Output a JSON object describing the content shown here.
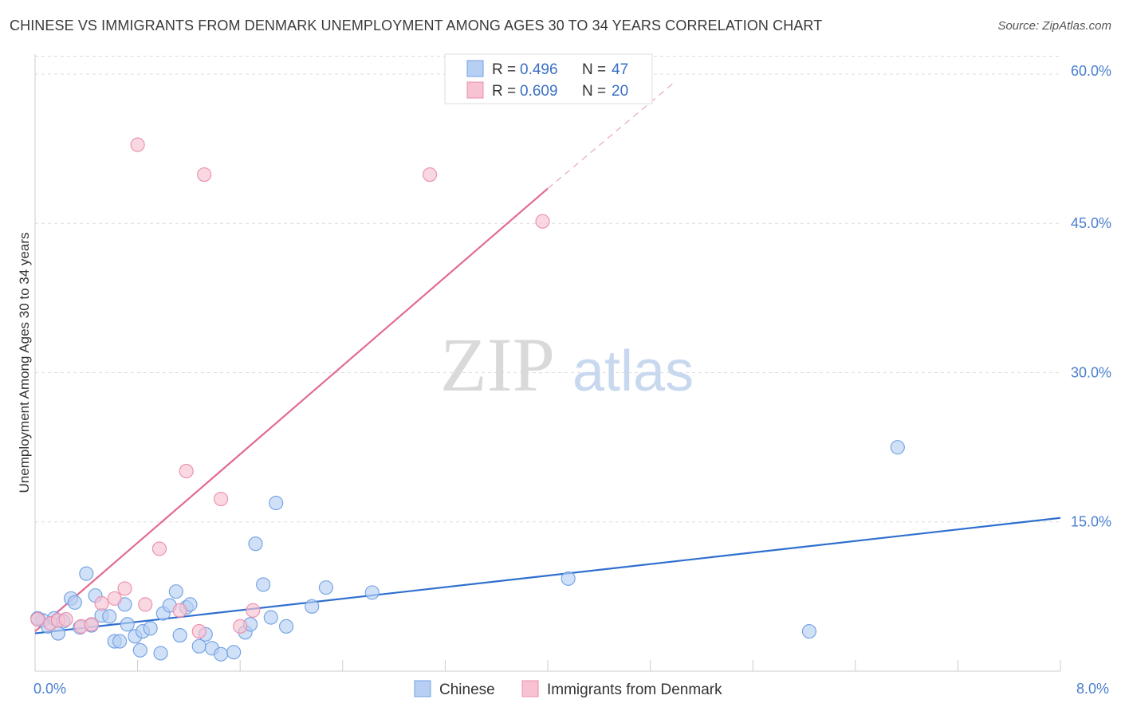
{
  "chart_data": {
    "type": "scatter",
    "title": "CHINESE VS IMMIGRANTS FROM DENMARK UNEMPLOYMENT AMONG AGES 30 TO 34 YEARS CORRELATION CHART",
    "source": "Source: ZipAtlas.com",
    "ylabel": "Unemployment Among Ages 30 to 34 years",
    "xlim": [
      0,
      8
    ],
    "ylim": [
      0,
      62
    ],
    "x_tick_labels": [
      "0.0%",
      "8.0%"
    ],
    "y_ticks": [
      15,
      30,
      45,
      60
    ],
    "y_tick_labels": [
      "15.0%",
      "30.0%",
      "45.0%",
      "60.0%"
    ],
    "watermark": {
      "zip": "ZIP",
      "atlas": "atlas"
    },
    "legend": {
      "r_label": "R =",
      "n_label": "N =",
      "entries": [
        {
          "name": "Chinese",
          "r": "0.496",
          "n": "47",
          "color": "#6fa0e4",
          "fill": "#b7cff2"
        },
        {
          "name": "Immigrants from Denmark",
          "r": "0.609",
          "n": "20",
          "color": "#ec8cab",
          "fill": "#f7c3d3"
        }
      ]
    },
    "series": [
      {
        "name": "Chinese",
        "color": "#6fa0e4",
        "fill": "#b7cff2",
        "trend": {
          "x0": 0.0,
          "y0": 3.8,
          "x1": 8.0,
          "y1": 15.4,
          "dashed_to": null,
          "line_color": "#2f6fcf"
        },
        "points": [
          [
            0.06,
            5.1
          ],
          [
            0.1,
            4.5
          ],
          [
            0.15,
            5.3
          ],
          [
            0.18,
            3.8
          ],
          [
            0.22,
            5.0
          ],
          [
            0.28,
            7.3
          ],
          [
            0.31,
            6.9
          ],
          [
            0.35,
            4.4
          ],
          [
            0.4,
            9.8
          ],
          [
            0.44,
            4.6
          ],
          [
            0.47,
            7.6
          ],
          [
            0.52,
            5.6
          ],
          [
            0.58,
            5.5
          ],
          [
            0.62,
            3.0
          ],
          [
            0.66,
            3.0
          ],
          [
            0.7,
            6.7
          ],
          [
            0.72,
            4.7
          ],
          [
            0.78,
            3.5
          ],
          [
            0.82,
            2.1
          ],
          [
            0.84,
            4.0
          ],
          [
            0.9,
            4.3
          ],
          [
            0.98,
            1.8
          ],
          [
            1.0,
            5.8
          ],
          [
            1.05,
            6.6
          ],
          [
            1.1,
            8.0
          ],
          [
            1.13,
            3.6
          ],
          [
            1.18,
            6.4
          ],
          [
            1.21,
            6.7
          ],
          [
            1.28,
            2.5
          ],
          [
            1.33,
            3.7
          ],
          [
            1.38,
            2.3
          ],
          [
            1.45,
            1.7
          ],
          [
            1.55,
            1.9
          ],
          [
            1.64,
            3.9
          ],
          [
            1.68,
            4.7
          ],
          [
            1.72,
            12.8
          ],
          [
            1.78,
            8.7
          ],
          [
            1.84,
            5.4
          ],
          [
            1.88,
            16.9
          ],
          [
            1.96,
            4.5
          ],
          [
            2.16,
            6.5
          ],
          [
            2.27,
            8.4
          ],
          [
            2.63,
            7.9
          ],
          [
            4.16,
            9.3
          ],
          [
            6.04,
            4.0
          ],
          [
            6.73,
            22.5
          ],
          [
            0.02,
            5.3
          ]
        ]
      },
      {
        "name": "Immigrants from Denmark",
        "color": "#ec8cab",
        "fill": "#f7c3d3",
        "trend": {
          "x0": 0.0,
          "y0": 4.0,
          "x1": 4.0,
          "y1": 48.5,
          "dashed_to": [
            5.0,
            59.3
          ],
          "line_color": "#e36a92"
        },
        "points": [
          [
            0.02,
            5.2
          ],
          [
            0.12,
            4.8
          ],
          [
            0.18,
            5.1
          ],
          [
            0.24,
            5.2
          ],
          [
            0.36,
            4.5
          ],
          [
            0.44,
            4.7
          ],
          [
            0.52,
            6.8
          ],
          [
            0.62,
            7.3
          ],
          [
            0.7,
            8.3
          ],
          [
            0.8,
            52.9
          ],
          [
            0.86,
            6.7
          ],
          [
            0.97,
            12.3
          ],
          [
            1.13,
            6.1
          ],
          [
            1.18,
            20.1
          ],
          [
            1.28,
            4.0
          ],
          [
            1.32,
            49.9
          ],
          [
            1.45,
            17.3
          ],
          [
            1.6,
            4.5
          ],
          [
            1.7,
            6.1
          ],
          [
            3.08,
            49.9
          ]
        ],
        "extra_points": [
          [
            3.96,
            45.2
          ]
        ]
      }
    ]
  }
}
